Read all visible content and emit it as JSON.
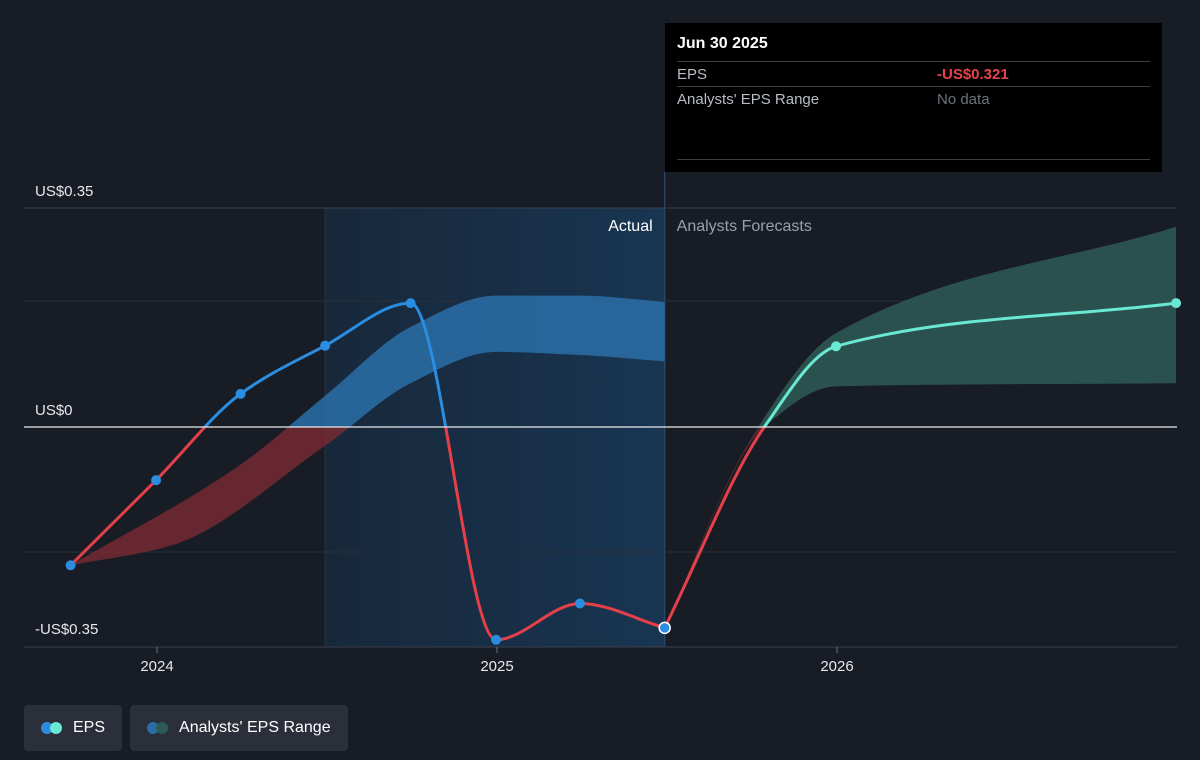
{
  "chart_data": {
    "type": "line",
    "y_ticks": [
      {
        "label": "US$0.35",
        "value": 0.35
      },
      {
        "label": "US$0",
        "value": 0
      },
      {
        "label": "-US$0.35",
        "value": -0.35
      }
    ],
    "ylim": [
      -0.35,
      0.35
    ],
    "x_ticks": [
      {
        "label": "2024",
        "value": "2024-01-01"
      },
      {
        "label": "2025",
        "value": "2025-01-01"
      },
      {
        "label": "2026",
        "value": "2026-01-01"
      }
    ],
    "xlim": [
      "2023-09-15",
      "2026-12-31"
    ],
    "actual_label": "Actual",
    "forecast_label": "Analysts Forecasts",
    "actual_region": {
      "start": "2024-06-30",
      "end": "2025-06-30"
    },
    "series": [
      {
        "name": "EPS",
        "points": [
          {
            "x": "2023-09-30",
            "y": -0.221
          },
          {
            "x": "2023-12-31",
            "y": -0.085
          },
          {
            "x": "2024-03-31",
            "y": 0.053
          },
          {
            "x": "2024-06-30",
            "y": 0.13
          },
          {
            "x": "2024-09-30",
            "y": 0.198
          },
          {
            "x": "2024-12-31",
            "y": -0.34
          },
          {
            "x": "2025-03-31",
            "y": -0.282
          },
          {
            "x": "2025-06-30",
            "y": -0.321
          }
        ],
        "positive_color": "#2b8de0",
        "negative_color": "#e5404a"
      },
      {
        "name": "EPS",
        "points": [
          {
            "x": "2025-06-30",
            "y": -0.321
          },
          {
            "x": "2025-10-15",
            "y": 0.0
          },
          {
            "x": "2025-12-31",
            "y": 0.129
          },
          {
            "x": "2026-12-31",
            "y": 0.198
          }
        ],
        "positive_color": "#6ae8d4",
        "negative_color": "#e5404a"
      }
    ],
    "range_series": [
      {
        "name": "Analysts' EPS Range",
        "upper": [
          {
            "x": "2023-09-30",
            "y": -0.221
          },
          {
            "x": "2024-03-31",
            "y": -0.06
          },
          {
            "x": "2024-06-30",
            "y": 0.05
          },
          {
            "x": "2024-09-30",
            "y": 0.16
          },
          {
            "x": "2024-12-31",
            "y": 0.21
          },
          {
            "x": "2025-03-31",
            "y": 0.21
          },
          {
            "x": "2025-06-30",
            "y": 0.2
          }
        ],
        "lower": [
          {
            "x": "2023-09-30",
            "y": -0.221
          },
          {
            "x": "2024-01-15",
            "y": -0.19
          },
          {
            "x": "2024-06-30",
            "y": -0.03
          },
          {
            "x": "2024-09-30",
            "y": 0.07
          },
          {
            "x": "2024-12-31",
            "y": 0.12
          },
          {
            "x": "2025-03-31",
            "y": 0.115
          },
          {
            "x": "2025-06-30",
            "y": 0.105
          }
        ],
        "positive_color": "#2a6ea8",
        "negative_color": "#7a2a33"
      },
      {
        "name": "Analysts' EPS Range",
        "upper": [
          {
            "x": "2025-06-30",
            "y": -0.321
          },
          {
            "x": "2025-09-30",
            "y": -0.02
          },
          {
            "x": "2025-12-31",
            "y": 0.15
          },
          {
            "x": "2026-12-31",
            "y": 0.32
          }
        ],
        "lower": [
          {
            "x": "2025-06-30",
            "y": -0.321
          },
          {
            "x": "2025-10-15",
            "y": 0.0
          },
          {
            "x": "2025-12-31",
            "y": 0.065
          },
          {
            "x": "2026-12-31",
            "y": 0.07
          }
        ],
        "positive_color": "#2f5b56",
        "negative_color": "#5a2a30"
      }
    ],
    "legend": [
      "EPS",
      "Analysts' EPS Range"
    ]
  },
  "tooltip": {
    "date": "Jun 30 2025",
    "rows": [
      {
        "label": "EPS",
        "value": "-US$0.321"
      },
      {
        "label": "Analysts' EPS Range",
        "value": "No data"
      }
    ]
  },
  "legend": {
    "items": [
      {
        "label": "EPS",
        "colors": [
          "#2b8de0",
          "#6ae8d4"
        ]
      },
      {
        "label": "Analysts' EPS Range",
        "colors": [
          "#2a6ea8",
          "#2f5b56"
        ]
      }
    ]
  }
}
